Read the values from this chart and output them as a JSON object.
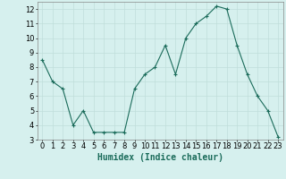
{
  "x": [
    0,
    1,
    2,
    3,
    4,
    5,
    6,
    7,
    8,
    9,
    10,
    11,
    12,
    13,
    14,
    15,
    16,
    17,
    18,
    19,
    20,
    21,
    22,
    23
  ],
  "y": [
    8.5,
    7.0,
    6.5,
    4.0,
    5.0,
    3.5,
    3.5,
    3.5,
    3.5,
    6.5,
    7.5,
    8.0,
    9.5,
    7.5,
    10.0,
    11.0,
    11.5,
    12.2,
    12.0,
    9.5,
    7.5,
    6.0,
    5.0,
    3.2
  ],
  "xlabel": "Humidex (Indice chaleur)",
  "ylim": [
    3,
    12.5
  ],
  "xlim": [
    -0.5,
    23.5
  ],
  "yticks": [
    3,
    4,
    5,
    6,
    7,
    8,
    9,
    10,
    11,
    12
  ],
  "xticks": [
    0,
    1,
    2,
    3,
    4,
    5,
    6,
    7,
    8,
    9,
    10,
    11,
    12,
    13,
    14,
    15,
    16,
    17,
    18,
    19,
    20,
    21,
    22,
    23
  ],
  "line_color": "#1a6b5a",
  "marker": "+",
  "bg_color": "#d6f0ee",
  "grid_color": "#c0deda",
  "tick_fontsize": 6,
  "xlabel_fontsize": 7
}
